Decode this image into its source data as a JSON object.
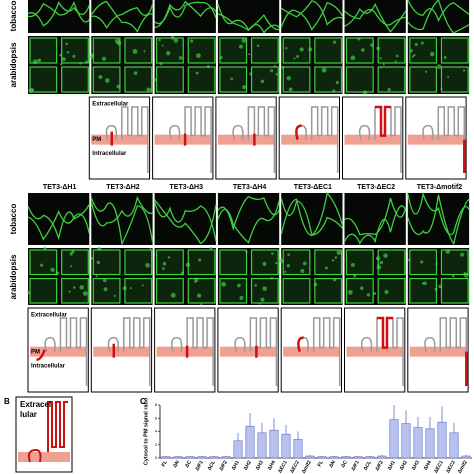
{
  "panel_a": {
    "top": {
      "row_labels": [
        "tobacco",
        "arabidopsis"
      ],
      "diagram_labels": {
        "extracellular": "Extracellular",
        "pm": "PM",
        "intracellular": "Intracellular"
      }
    },
    "bottom": {
      "column_headers": [
        "TET3-ΔH1",
        "TET3-ΔH2",
        "TET3-ΔH3",
        "TET3-ΔH4",
        "TET3-ΔEC1",
        "TET3-ΔEC2",
        "TET3-Δmotif2"
      ],
      "row_labels": [
        "tobacco",
        "arabidopsis"
      ],
      "diagram_labels": {
        "extracellular": "Extracellular",
        "pm": "PM",
        "intracellular": "Intracellular"
      }
    }
  },
  "panel_b": {
    "label": "B",
    "text_lines": [
      "Extracel",
      "lular"
    ]
  },
  "chart_data": {
    "type": "bar",
    "panel_label": "C",
    "y_label": "Cytosol to PM signal ratio",
    "categories": [
      "FL",
      "ΔN",
      "ΔC",
      "ΔIF1",
      "ΔCL",
      "ΔIF2",
      "ΔH1",
      "ΔH2",
      "ΔH3",
      "ΔH4",
      "ΔEC1",
      "ΔEC2",
      "Δmif2",
      "FL",
      "ΔN",
      "ΔC",
      "ΔIF1",
      "ΔCL",
      "ΔIF2",
      "ΔH1",
      "ΔH2",
      "ΔH3",
      "ΔH4",
      "ΔEC1",
      "ΔEC2",
      "Δmif2"
    ],
    "values": [
      0.2,
      0.2,
      0.2,
      0.2,
      0.2,
      0.2,
      2.6,
      4.8,
      3.8,
      4.2,
      3.6,
      2.8,
      0.3,
      0.2,
      0.2,
      0.2,
      0.2,
      0.2,
      0.3,
      5.8,
      5.2,
      4.6,
      4.4,
      5.4,
      3.8,
      0.3
    ],
    "errors": [
      0.1,
      0.1,
      0.1,
      0.1,
      0.1,
      0.1,
      1.2,
      2.0,
      1.5,
      1.8,
      1.4,
      1.2,
      0.2,
      0.1,
      0.1,
      0.1,
      0.1,
      0.1,
      0.2,
      2.2,
      2.0,
      1.6,
      1.8,
      2.4,
      1.5,
      0.2
    ],
    "color": "#b8c0ee",
    "ylim": [
      0,
      8
    ],
    "yticks": [
      0,
      2,
      4,
      6,
      8
    ]
  }
}
